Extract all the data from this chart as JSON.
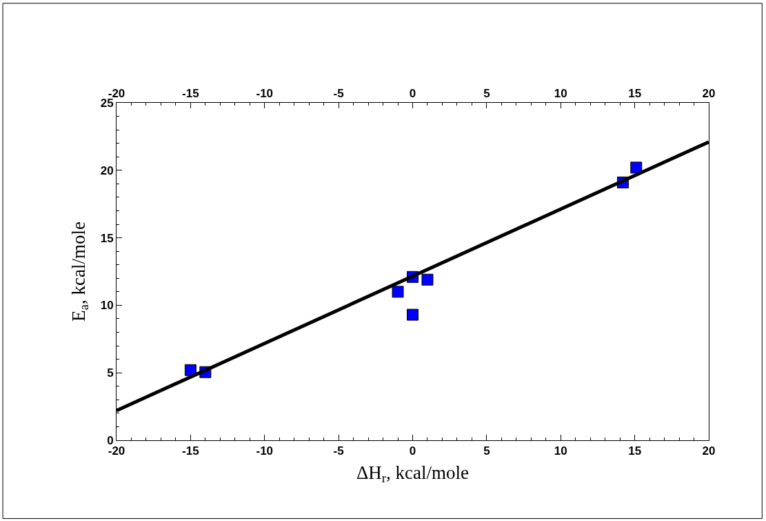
{
  "chart_data": {
    "type": "scatter",
    "xlabel": "ΔH$_{r}$, kcal/mole",
    "ylabel": "E$_{a}$, kcal/mole",
    "xlim": [
      -20,
      20
    ],
    "xticks": [
      -20,
      -15,
      -10,
      -5,
      0,
      5,
      10,
      15,
      20
    ],
    "x2lim": [
      -20,
      20
    ],
    "x2ticks": [
      -20,
      -15,
      -10,
      -5,
      0,
      5,
      10,
      15,
      20
    ],
    "ylim": [
      0,
      25
    ],
    "yticks": [
      0,
      5,
      10,
      15,
      20,
      25
    ],
    "grid": false,
    "legend": false,
    "series": [
      {
        "marker": "square",
        "color": "#0000ff",
        "x": [
          -15,
          -14,
          -1,
          0,
          0,
          1,
          14.2,
          15.1
        ],
        "values": [
          5.2,
          5.05,
          11,
          12.1,
          9.3,
          11.9,
          19.1,
          20.2
        ]
      },
      {
        "type": "line",
        "marker": "none",
        "line_style": "solid",
        "color": "#000000",
        "x": [
          -20,
          20
        ],
        "values": [
          2.2,
          22.1
        ]
      }
    ]
  }
}
